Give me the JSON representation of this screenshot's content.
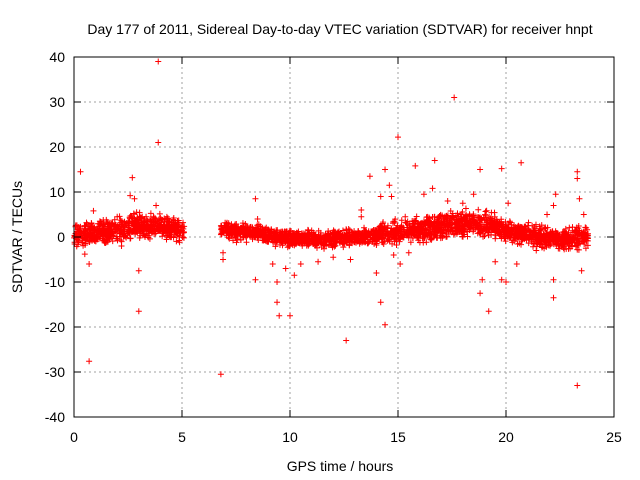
{
  "chart_data": {
    "type": "scatter",
    "title": "Day 177 of 2011, Sidereal Day-to-day VTEC variation (SDTVAR) for receiver hnpt",
    "xlabel": "GPS time / hours",
    "ylabel": "SDTVAR / TECUs",
    "xlim": [
      0,
      25
    ],
    "ylim": [
      -40,
      40
    ],
    "xticks": [
      0,
      5,
      10,
      15,
      20,
      25
    ],
    "yticks": [
      -40,
      -30,
      -20,
      -10,
      0,
      10,
      20,
      30,
      40
    ],
    "grid": true,
    "marker": "+",
    "color": "#ff0000",
    "dense_bands": [
      {
        "x0": 0.0,
        "x1": 5.1,
        "center": [
          [
            0,
            0.5
          ],
          [
            1.5,
            1.2
          ],
          [
            3.0,
            2.5
          ],
          [
            4.0,
            2.5
          ],
          [
            5.0,
            1.0
          ]
        ],
        "spread": 2.2
      },
      {
        "x0": 6.8,
        "x1": 9.2,
        "center": [
          [
            6.8,
            1.5
          ],
          [
            8.0,
            1.2
          ],
          [
            9.2,
            0.5
          ]
        ],
        "spread": 1.6
      },
      {
        "x0": 9.2,
        "x1": 14.0,
        "center": [
          [
            9.2,
            0.0
          ],
          [
            11.0,
            -0.5
          ],
          [
            12.5,
            -0.3
          ],
          [
            14.0,
            0.5
          ]
        ],
        "spread": 1.6
      },
      {
        "x0": 14.0,
        "x1": 19.5,
        "center": [
          [
            14.0,
            0.5
          ],
          [
            15.5,
            1.5
          ],
          [
            17.0,
            2.5
          ],
          [
            18.5,
            3.0
          ],
          [
            19.5,
            2.5
          ]
        ],
        "spread": 2.4
      },
      {
        "x0": 19.5,
        "x1": 23.8,
        "center": [
          [
            19.5,
            2.0
          ],
          [
            21.0,
            0.5
          ],
          [
            22.5,
            -0.5
          ],
          [
            23.8,
            0.0
          ]
        ],
        "spread": 2.0
      }
    ],
    "outliers": [
      [
        0.3,
        14.5
      ],
      [
        0.7,
        -27.6
      ],
      [
        0.7,
        -6.0
      ],
      [
        0.5,
        -3.8
      ],
      [
        0.9,
        5.8
      ],
      [
        1.2,
        3.5
      ],
      [
        2.7,
        13.2
      ],
      [
        2.6,
        9.2
      ],
      [
        2.8,
        8.5
      ],
      [
        2.9,
        5.5
      ],
      [
        3.0,
        -7.5
      ],
      [
        3.0,
        -16.5
      ],
      [
        2.2,
        -2.0
      ],
      [
        3.9,
        39.0
      ],
      [
        3.9,
        21.0
      ],
      [
        3.8,
        7.0
      ],
      [
        6.8,
        -30.5
      ],
      [
        6.9,
        -3.5
      ],
      [
        6.9,
        -5.0
      ],
      [
        8.4,
        8.5
      ],
      [
        8.5,
        4.0
      ],
      [
        8.4,
        -9.5
      ],
      [
        9.2,
        -6.0
      ],
      [
        9.4,
        -10.0
      ],
      [
        9.4,
        -14.5
      ],
      [
        9.5,
        -17.5
      ],
      [
        10.0,
        -17.5
      ],
      [
        9.8,
        -7.0
      ],
      [
        10.2,
        -8.5
      ],
      [
        10.5,
        -6.0
      ],
      [
        11.3,
        -5.5
      ],
      [
        12.0,
        -4.5
      ],
      [
        12.6,
        -23.0
      ],
      [
        12.8,
        -5.0
      ],
      [
        13.3,
        6.0
      ],
      [
        13.3,
        4.5
      ],
      [
        13.7,
        13.5
      ],
      [
        14.2,
        9.0
      ],
      [
        14.0,
        -8.0
      ],
      [
        14.2,
        -14.5
      ],
      [
        14.4,
        -19.5
      ],
      [
        14.4,
        15.0
      ],
      [
        14.6,
        11.5
      ],
      [
        14.7,
        9.0
      ],
      [
        14.8,
        -4.0
      ],
      [
        15.0,
        22.2
      ],
      [
        15.1,
        -6.0
      ],
      [
        15.5,
        -3.5
      ],
      [
        15.8,
        15.8
      ],
      [
        16.2,
        9.5
      ],
      [
        16.7,
        17.0
      ],
      [
        16.6,
        10.8
      ],
      [
        17.3,
        8.0
      ],
      [
        17.6,
        31.0
      ],
      [
        18.0,
        7.5
      ],
      [
        18.5,
        9.5
      ],
      [
        18.8,
        15.0
      ],
      [
        18.8,
        -12.5
      ],
      [
        18.9,
        -9.5
      ],
      [
        19.2,
        -16.5
      ],
      [
        19.5,
        -5.5
      ],
      [
        19.8,
        15.2
      ],
      [
        19.8,
        -9.5
      ],
      [
        20.0,
        -10.0
      ],
      [
        20.1,
        7.5
      ],
      [
        20.5,
        -6.0
      ],
      [
        20.7,
        16.5
      ],
      [
        21.4,
        -3.0
      ],
      [
        21.9,
        5.0
      ],
      [
        22.2,
        -9.5
      ],
      [
        22.2,
        -13.5
      ],
      [
        22.3,
        9.5
      ],
      [
        22.2,
        7.0
      ],
      [
        23.3,
        14.5
      ],
      [
        23.3,
        13.0
      ],
      [
        23.4,
        8.5
      ],
      [
        23.3,
        -33.0
      ],
      [
        23.5,
        -7.5
      ],
      [
        23.6,
        5.0
      ],
      [
        23.7,
        -2.5
      ]
    ]
  }
}
